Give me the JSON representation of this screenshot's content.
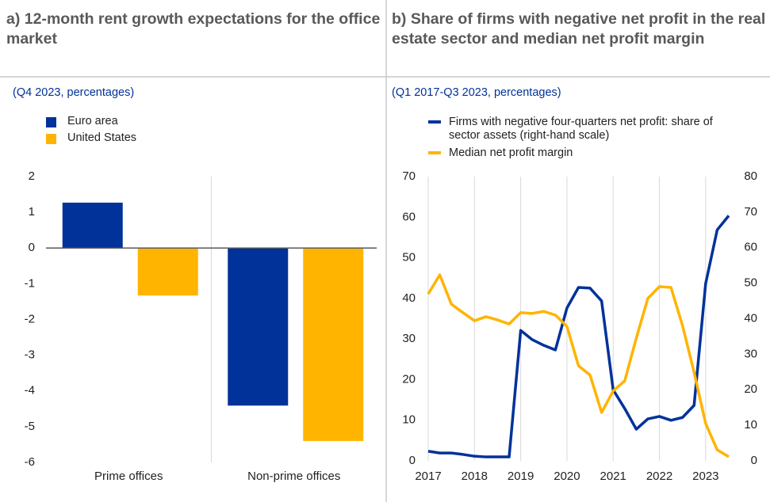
{
  "chart_data": [
    {
      "type": "bar",
      "title": "a) 12-month rent growth expectations for the office market",
      "subtitle": "(Q4 2023, percentages)",
      "categories": [
        "Prime offices",
        "Non-prime offices"
      ],
      "series": [
        {
          "name": "Euro area",
          "color": "#003299",
          "values": [
            1.27,
            -4.41
          ]
        },
        {
          "name": "United States",
          "color": "#ffb400",
          "values": [
            -1.33,
            -5.4
          ]
        }
      ],
      "ylim": [
        -6,
        2
      ],
      "yticks": [
        -6,
        -5,
        -4,
        -3,
        -2,
        -1,
        0,
        1,
        2
      ]
    },
    {
      "type": "line",
      "title": "b) Share of firms with negative net profit in the real estate sector and median net profit margin",
      "subtitle": "(Q1 2017-Q3 2023, percentages)",
      "x": [
        2017,
        2017.25,
        2017.5,
        2017.75,
        2018,
        2018.25,
        2018.5,
        2018.75,
        2019,
        2019.25,
        2019.5,
        2019.75,
        2020,
        2020.25,
        2020.5,
        2020.75,
        2021,
        2021.25,
        2021.5,
        2021.75,
        2022,
        2022.25,
        2022.5,
        2022.75,
        2023,
        2023.25,
        2023.5
      ],
      "series": [
        {
          "name": "Firms with negative four-quarters net profit: share of sector assets (right-hand scale)",
          "color": "#003299",
          "axis": "y2",
          "values": [
            2.7,
            2.2,
            2.2,
            1.8,
            1.3,
            1.1,
            1.1,
            1.1,
            36.7,
            34.1,
            32.5,
            31.2,
            43,
            48.8,
            48.6,
            45,
            20,
            14.7,
            8.9,
            11.8,
            12.5,
            11.4,
            12.2,
            15.6,
            49.9,
            65,
            69
          ]
        },
        {
          "name": "Median net profit margin",
          "color": "#ffb400",
          "values": [
            41.1,
            45.8,
            38.6,
            36.5,
            34.5,
            35.5,
            34.7,
            33.7,
            36.5,
            36.3,
            36.8,
            35.9,
            33.1,
            23.4,
            21.1,
            11.9,
            17.2,
            19.7,
            30.2,
            40,
            42.9,
            42.7,
            33.3,
            21.8,
            9.2,
            2.7,
            1.0
          ]
        }
      ],
      "xlim": [
        2017,
        2023.5
      ],
      "xticks": [
        2017,
        2018,
        2019,
        2020,
        2021,
        2022,
        2023
      ],
      "ylim": [
        0,
        70
      ],
      "yticks": [
        0,
        10,
        20,
        30,
        40,
        50,
        60,
        70
      ],
      "y2lim": [
        0,
        80
      ],
      "y2ticks": [
        0,
        10,
        20,
        30,
        40,
        50,
        60,
        70,
        80
      ],
      "grid": "x"
    }
  ]
}
